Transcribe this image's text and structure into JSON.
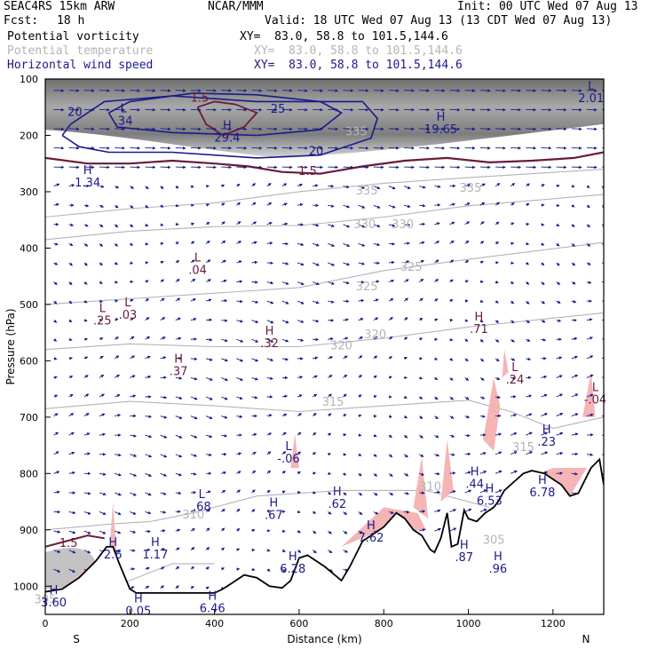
{
  "header": {
    "model": "SEAC4RS 15km ARW",
    "org": "NCAR/MMM",
    "init": "Init: 00 UTC Wed 07 Aug 13",
    "fcst_label": "Fcst:",
    "fcst_value": "18 h",
    "valid": "Valid: 18 UTC Wed 07 Aug 13 (13 CDT Wed 07 Aug 13)",
    "fields": [
      {
        "name": "Potential vorticity",
        "xy": "XY=  83.0, 58.8 to 101.5,144.6",
        "color": "#000000"
      },
      {
        "name": "Potential temperature",
        "xy": "XY=  83.0, 58.8 to 101.5,144.6",
        "color": "#b4b4b4"
      },
      {
        "name": "Horizontal wind speed",
        "xy": "XY=  83.0, 58.8 to 101.5,144.6",
        "color": "#1a1a8c"
      }
    ]
  },
  "chart_data": {
    "type": "contour-cross-section",
    "xlabel": "Distance (km)",
    "ylabel": "Pressure (hPa)",
    "xlim": [
      0,
      1320
    ],
    "ylim": [
      1050,
      100
    ],
    "x_ticks": [
      0,
      200,
      400,
      600,
      800,
      1000,
      1200
    ],
    "y_ticks": [
      100,
      200,
      300,
      400,
      500,
      600,
      700,
      800,
      900,
      1000
    ],
    "x_end_labels": [
      "S",
      "N"
    ],
    "colors": {
      "pv": "#6b1a3a",
      "theta": "#b4b4b4",
      "wind": "#1a1a8c",
      "pv_fill": "#f5b5b5",
      "terrain": "#000000"
    },
    "theta_labels": [
      {
        "text": "335",
        "x": 735,
        "p": 200
      },
      {
        "text": "335",
        "x": 760,
        "p": 305
      },
      {
        "text": "335",
        "x": 1005,
        "p": 300
      },
      {
        "text": "330",
        "x": 755,
        "p": 365
      },
      {
        "text": "330",
        "x": 845,
        "p": 365
      },
      {
        "text": "325",
        "x": 760,
        "p": 475
      },
      {
        "text": "325",
        "x": 865,
        "p": 440
      },
      {
        "text": "320",
        "x": 700,
        "p": 580
      },
      {
        "text": "320",
        "x": 780,
        "p": 560
      },
      {
        "text": "315",
        "x": 680,
        "p": 680
      },
      {
        "text": "315",
        "x": 1130,
        "p": 760
      },
      {
        "text": "310",
        "x": 350,
        "p": 880
      },
      {
        "text": "310",
        "x": 910,
        "p": 830
      },
      {
        "text": "305",
        "x": 1060,
        "p": 925
      },
      {
        "text": "305",
        "x": 0,
        "p": 1030
      }
    ],
    "wind_labels": [
      {
        "text": "20",
        "x": 70,
        "p": 165
      },
      {
        "text": "25",
        "x": 550,
        "p": 160
      },
      {
        "text": "20",
        "x": 640,
        "p": 235
      }
    ],
    "pv_labels": [
      {
        "text": "1.5",
        "x": 365,
        "p": 140
      },
      {
        "text": "1.5",
        "x": 620,
        "p": 270
      },
      {
        "text": "1.5",
        "x": 55,
        "p": 930
      }
    ],
    "extrema": [
      {
        "letter": "L",
        "value": ".34",
        "x": 185,
        "p": 165
      },
      {
        "letter": "H",
        "value": "29.4",
        "x": 430,
        "p": 195
      },
      {
        "letter": "H",
        "value": "19.65",
        "x": 935,
        "p": 180
      },
      {
        "letter": "L",
        "value": "2.01",
        "x": 1290,
        "p": 125
      },
      {
        "letter": "H",
        "value": "1.34",
        "x": 100,
        "p": 275
      },
      {
        "letter": "L",
        "value": ".04",
        "x": 360,
        "p": 430
      },
      {
        "letter": "L",
        "value": ".25",
        "x": 135,
        "p": 520
      },
      {
        "letter": "L",
        "value": ".03",
        "x": 195,
        "p": 510
      },
      {
        "letter": "H",
        "value": ".32",
        "x": 530,
        "p": 560
      },
      {
        "letter": "H",
        "value": ".71",
        "x": 1025,
        "p": 535
      },
      {
        "letter": "H",
        "value": ".37",
        "x": 315,
        "p": 610
      },
      {
        "letter": "L",
        "value": ".24",
        "x": 1110,
        "p": 625
      },
      {
        "letter": "L",
        "value": "-.04",
        "x": 1300,
        "p": 660
      },
      {
        "letter": "H",
        "value": ".23",
        "x": 1185,
        "p": 735
      },
      {
        "letter": "L",
        "value": "-.06",
        "x": 575,
        "p": 765
      },
      {
        "letter": "H",
        "value": ".44",
        "x": 1015,
        "p": 810
      },
      {
        "letter": "H",
        "value": "6.53",
        "x": 1050,
        "p": 840
      },
      {
        "letter": "H",
        "value": "6.78",
        "x": 1175,
        "p": 825
      },
      {
        "letter": "L",
        "value": ".68",
        "x": 370,
        "p": 850
      },
      {
        "letter": "H",
        "value": ".67",
        "x": 540,
        "p": 865
      },
      {
        "letter": "H",
        "value": ".62",
        "x": 690,
        "p": 845
      },
      {
        "letter": "H",
        "value": "7.62",
        "x": 770,
        "p": 905
      },
      {
        "letter": "H",
        "value": "1.17",
        "x": 260,
        "p": 935
      },
      {
        "letter": "H",
        "value": "6.28",
        "x": 585,
        "p": 960
      },
      {
        "letter": "H",
        "value": ".87",
        "x": 990,
        "p": 940
      },
      {
        "letter": "H",
        "value": ".96",
        "x": 1070,
        "p": 960
      },
      {
        "letter": "H",
        "value": "3.60",
        "x": 20,
        "p": 1020
      },
      {
        "letter": "H",
        "value": "0.05",
        "x": 220,
        "p": 1035
      },
      {
        "letter": "H",
        "value": "6.46",
        "x": 395,
        "p": 1030
      },
      {
        "letter": "H",
        "value": "2.6",
        "x": 160,
        "p": 935
      }
    ],
    "terrain_surface": [
      [
        0,
        1010
      ],
      [
        40,
        1005
      ],
      [
        80,
        985
      ],
      [
        120,
        955
      ],
      [
        145,
        930
      ],
      [
        160,
        930
      ],
      [
        175,
        960
      ],
      [
        200,
        1005
      ],
      [
        215,
        1012
      ],
      [
        400,
        1012
      ],
      [
        420,
        1005
      ],
      [
        440,
        995
      ],
      [
        470,
        980
      ],
      [
        500,
        985
      ],
      [
        530,
        1000
      ],
      [
        560,
        1003
      ],
      [
        580,
        990
      ],
      [
        600,
        950
      ],
      [
        620,
        945
      ],
      [
        660,
        965
      ],
      [
        700,
        990
      ],
      [
        720,
        965
      ],
      [
        750,
        920
      ],
      [
        780,
        905
      ],
      [
        800,
        895
      ],
      [
        830,
        870
      ],
      [
        850,
        880
      ],
      [
        870,
        900
      ],
      [
        890,
        910
      ],
      [
        910,
        935
      ],
      [
        920,
        940
      ],
      [
        935,
        915
      ],
      [
        950,
        870
      ],
      [
        960,
        930
      ],
      [
        975,
        925
      ],
      [
        990,
        865
      ],
      [
        1000,
        880
      ],
      [
        1020,
        885
      ],
      [
        1040,
        870
      ],
      [
        1060,
        860
      ],
      [
        1070,
        850
      ],
      [
        1085,
        830
      ],
      [
        1100,
        820
      ],
      [
        1130,
        800
      ],
      [
        1150,
        795
      ],
      [
        1180,
        800
      ],
      [
        1200,
        810
      ],
      [
        1220,
        820
      ],
      [
        1240,
        840
      ],
      [
        1260,
        835
      ],
      [
        1290,
        790
      ],
      [
        1310,
        775
      ],
      [
        1320,
        820
      ]
    ]
  }
}
